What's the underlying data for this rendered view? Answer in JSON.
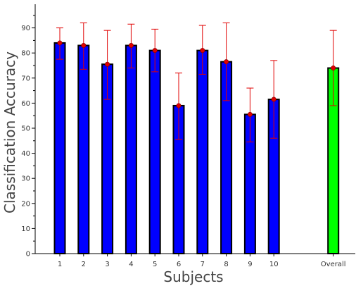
{
  "chart_data": {
    "type": "bar",
    "title": "",
    "xlabel": "Subjects",
    "ylabel": "Classification Accuracy",
    "ylim": [
      0,
      98
    ],
    "yticks": [
      0,
      10,
      20,
      30,
      40,
      50,
      60,
      70,
      80,
      90
    ],
    "grid": false,
    "categories": [
      "1",
      "2",
      "3",
      "4",
      "5",
      "6",
      "7",
      "8",
      "9",
      "10",
      "Overall"
    ],
    "x": [
      1,
      2,
      3,
      4,
      5,
      6,
      7,
      8,
      9,
      10,
      12.5
    ],
    "values": [
      84,
      83,
      75.5,
      83,
      81,
      59,
      81,
      76.5,
      55.5,
      61.5,
      74
    ],
    "error_low": [
      77.5,
      73.5,
      61.5,
      74,
      72.5,
      45.5,
      71.5,
      61,
      44.5,
      46,
      59
    ],
    "error_high": [
      90,
      92,
      89,
      91.5,
      89.5,
      72,
      91,
      92,
      66,
      77,
      89
    ],
    "colors": {
      "bars": "#0000ff",
      "overall_bar": "#00ff00",
      "bar_outline": "#000000",
      "error_bar": "#e00000",
      "marker": "#e00000"
    }
  }
}
